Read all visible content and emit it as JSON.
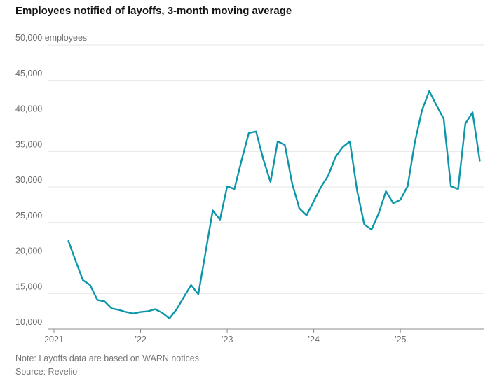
{
  "title": "Employees notified of layoffs, 3-month moving average",
  "note": "Note: Layoffs data are based on WARN notices",
  "source": "Source: Revelio",
  "colors": {
    "line": "#0C96A9",
    "grid": "#E4E4E4",
    "axis": "#8C8C8C",
    "title_text": "#141414",
    "axis_label": "#6E6E6E",
    "note_text": "#767676"
  },
  "chart_data": {
    "type": "line",
    "title": "Employees notified of layoffs, 3-month moving average",
    "unit": "employees",
    "grid": true,
    "legend": "none",
    "y_axis": {
      "min": 10000,
      "max": 50000,
      "step": 5000,
      "tick_labels": [
        "10,000",
        "15,000",
        "20,000",
        "25,000",
        "30,000",
        "35,000",
        "40,000",
        "45,000",
        "50,000 employees"
      ]
    },
    "x_axis": {
      "tick_labels": [
        "2021",
        "’22",
        "’23",
        "’24",
        "’25"
      ],
      "tick_years": [
        2021,
        2022,
        2023,
        2024,
        2025
      ]
    },
    "series": [
      {
        "name": "Employees notified of layoffs, 3-month moving average",
        "color": "#0C96A9",
        "months": [
          "2021-03",
          "2021-04",
          "2021-05",
          "2021-06",
          "2021-07",
          "2021-08",
          "2021-09",
          "2021-10",
          "2021-11",
          "2021-12",
          "2022-01",
          "2022-02",
          "2022-03",
          "2022-04",
          "2022-05",
          "2022-06",
          "2022-07",
          "2022-08",
          "2022-09",
          "2022-10",
          "2022-11",
          "2022-12",
          "2023-01",
          "2023-02",
          "2023-03",
          "2023-04",
          "2023-05",
          "2023-06",
          "2023-07",
          "2023-08",
          "2023-09",
          "2023-10",
          "2023-11",
          "2023-12",
          "2024-01",
          "2024-02",
          "2024-03",
          "2024-04",
          "2024-05",
          "2024-06",
          "2024-07",
          "2024-08",
          "2024-09",
          "2024-10",
          "2024-11",
          "2024-12",
          "2025-01",
          "2025-02",
          "2025-03",
          "2025-04",
          "2025-05",
          "2025-06",
          "2025-07",
          "2025-08",
          "2025-09",
          "2025-10",
          "2025-11",
          "2025-12"
        ],
        "values": [
          22400,
          19600,
          16900,
          16200,
          14100,
          13900,
          12900,
          12700,
          12400,
          12200,
          12400,
          12500,
          12800,
          12300,
          11500,
          12800,
          14500,
          16200,
          14900,
          20800,
          26700,
          25400,
          30100,
          29700,
          33800,
          37600,
          37800,
          33900,
          30700,
          36400,
          35900,
          30500,
          27000,
          26000,
          28000,
          30000,
          31600,
          34200,
          35600,
          36400,
          29500,
          24700,
          24000,
          26300,
          29400,
          27700,
          28200,
          30100,
          36300,
          40800,
          43500,
          41500,
          39600,
          30100,
          29700,
          38900,
          40500,
          33700
        ]
      }
    ]
  }
}
